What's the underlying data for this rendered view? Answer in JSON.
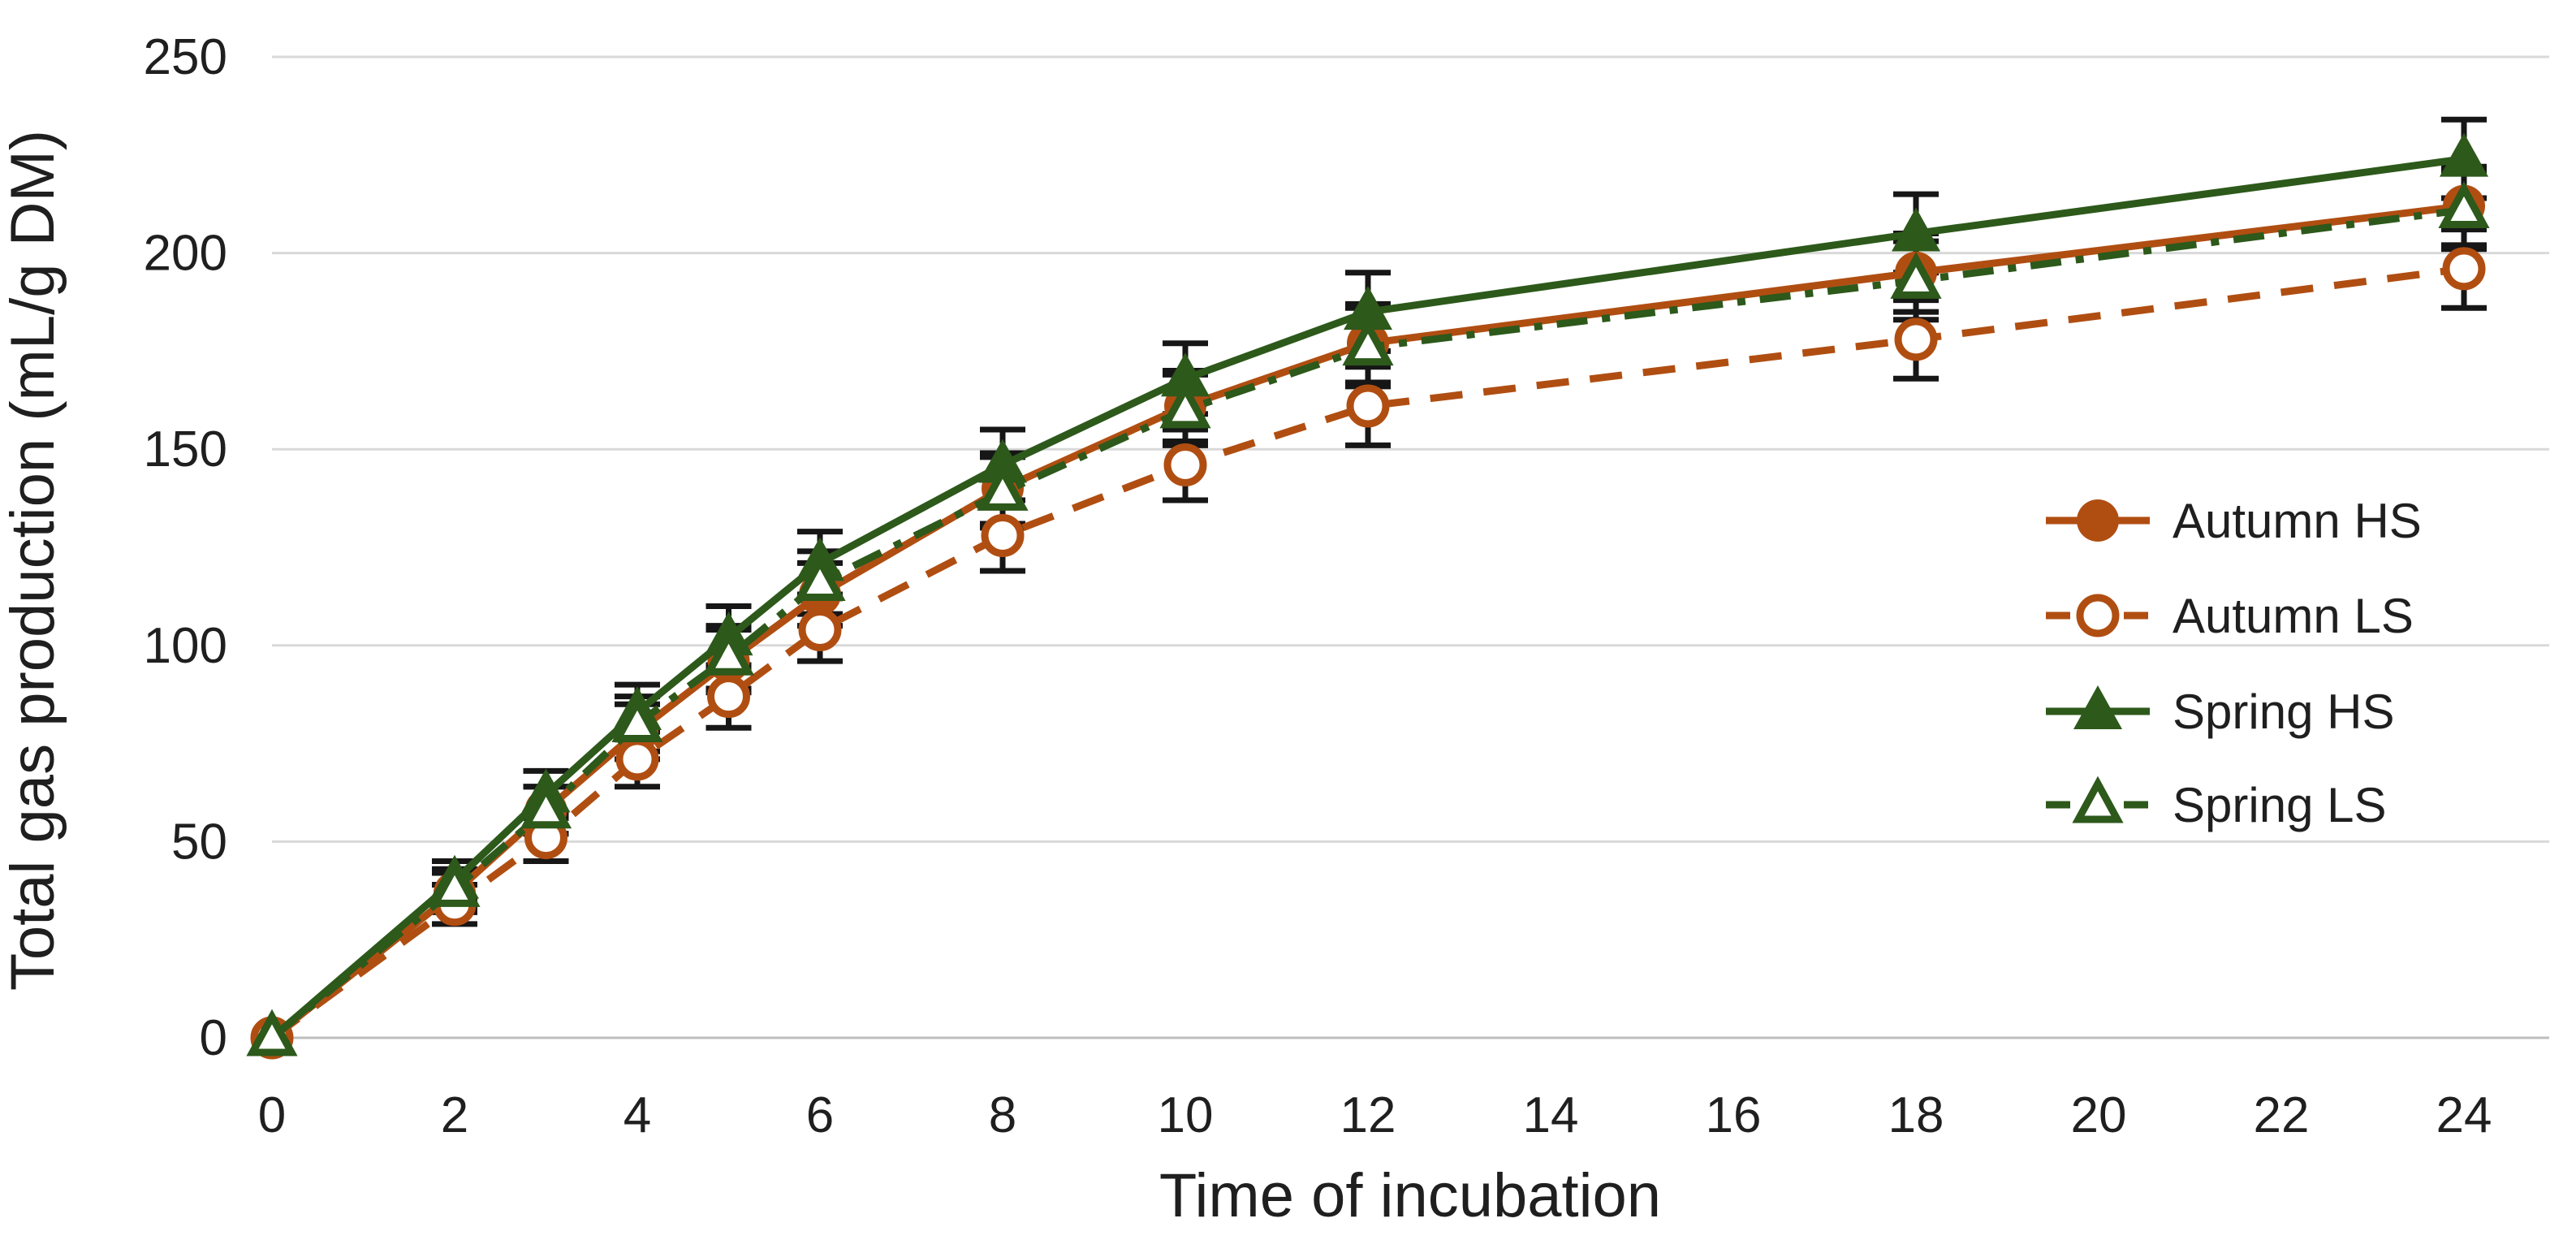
{
  "chart_data": {
    "type": "line",
    "title": "",
    "xlabel": "Time of incubation",
    "ylabel": "Total gas production (mL/g DM)",
    "x": [
      0,
      2,
      3,
      4,
      5,
      6,
      8,
      10,
      12,
      18,
      24
    ],
    "x_ticks": [
      0,
      2,
      4,
      6,
      8,
      10,
      12,
      14,
      16,
      18,
      20,
      22,
      24
    ],
    "y_ticks": [
      0,
      50,
      100,
      150,
      200,
      250
    ],
    "xlim": [
      0,
      24.9
    ],
    "ylim": [
      0,
      250
    ],
    "grid": "horizontal",
    "legend_position": "inside-right",
    "error_bar_half_heights": [
      0,
      5,
      6,
      7,
      8,
      8,
      9,
      9,
      10,
      10,
      10
    ],
    "series": [
      {
        "name": "Autumn HS",
        "color": "#B04E12",
        "line": "solid",
        "marker": "circle-filled",
        "values": [
          0,
          37,
          58,
          78,
          96,
          113,
          140,
          161,
          177,
          195,
          212
        ]
      },
      {
        "name": "Autumn LS",
        "color": "#B04E12",
        "line": "dashed",
        "marker": "circle-open",
        "values": [
          0,
          34,
          51,
          71,
          87,
          104,
          128,
          146,
          161,
          178,
          196
        ]
      },
      {
        "name": "Spring HS",
        "color": "#2D591B",
        "line": "solid",
        "marker": "triangle-filled",
        "values": [
          0,
          40,
          62,
          83,
          102,
          121,
          146,
          168,
          185,
          205,
          224
        ]
      },
      {
        "name": "Spring LS",
        "color": "#2D591B",
        "line": "dash-dot",
        "marker": "triangle-open",
        "values": [
          0,
          38,
          58,
          80,
          97,
          116,
          139,
          160,
          176,
          193,
          211
        ]
      }
    ],
    "colors": {
      "grid": "#D9D9D9",
      "axis_line": "#BFBFBF",
      "error_bar": "#161616",
      "text": "#1f1f1f",
      "background": "#ffffff",
      "open_marker_fill": "#ffffff"
    }
  }
}
